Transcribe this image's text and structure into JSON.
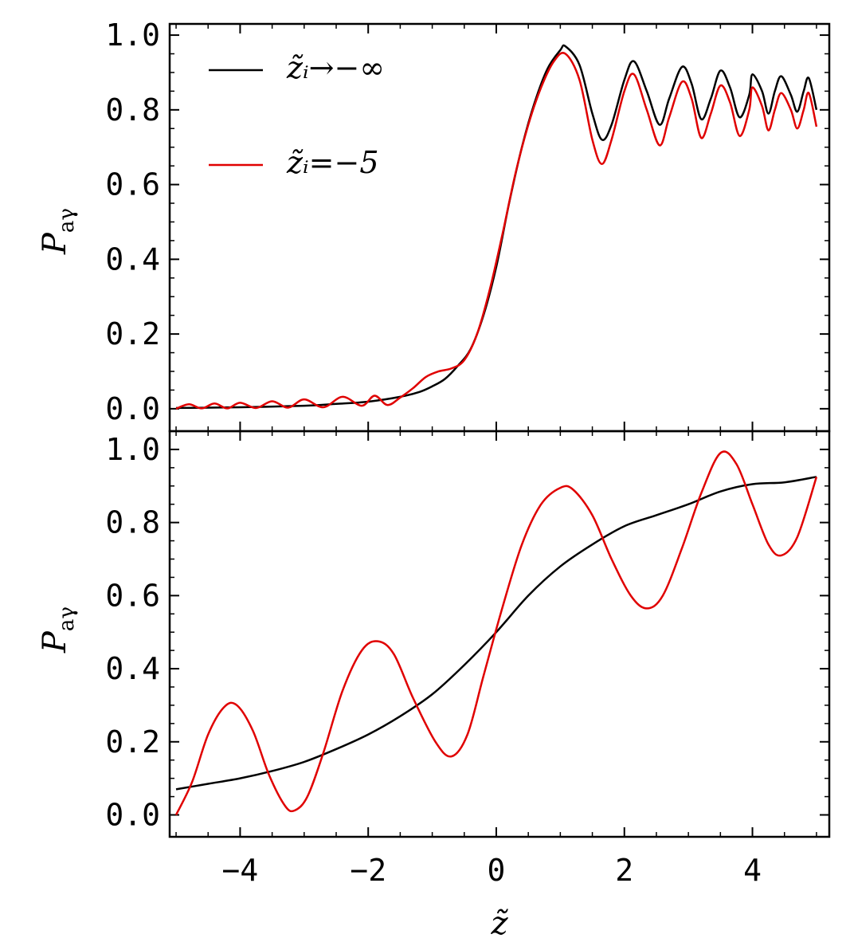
{
  "chart_data": [
    {
      "type": "line",
      "panel": "top",
      "ylabel": "P_aγ",
      "xlim": [
        -5.1,
        5.2
      ],
      "ylim": [
        -0.06,
        1.03
      ],
      "x_ticks": [
        -4,
        -2,
        0,
        2,
        4
      ],
      "y_ticks": [
        0.0,
        0.2,
        0.4,
        0.6,
        0.8,
        1.0
      ],
      "y_tick_labels": [
        "0.0",
        "0.2",
        "0.4",
        "0.6",
        "0.8",
        "1.0"
      ],
      "legend_position": "top-left",
      "grid": false,
      "series": [
        {
          "name": "z̃ᵢ→−∞",
          "color": "#000000",
          "points": [
            [
              -5,
              0.002
            ],
            [
              -4,
              0.004
            ],
            [
              -3,
              0.008
            ],
            [
              -2.5,
              0.013
            ],
            [
              -2,
              0.019
            ],
            [
              -1.5,
              0.032
            ],
            [
              -1.2,
              0.045
            ],
            [
              -1,
              0.06
            ],
            [
              -0.8,
              0.08
            ],
            [
              -0.6,
              0.115
            ],
            [
              -0.4,
              0.16
            ],
            [
              -0.2,
              0.25
            ],
            [
              0,
              0.38
            ],
            [
              0.2,
              0.55
            ],
            [
              0.4,
              0.7
            ],
            [
              0.6,
              0.82
            ],
            [
              0.8,
              0.91
            ],
            [
              1.0,
              0.96
            ],
            [
              1.08,
              0.97
            ],
            [
              1.3,
              0.92
            ],
            [
              1.5,
              0.79
            ],
            [
              1.65,
              0.72
            ],
            [
              1.8,
              0.76
            ],
            [
              2.0,
              0.88
            ],
            [
              2.15,
              0.93
            ],
            [
              2.35,
              0.85
            ],
            [
              2.55,
              0.76
            ],
            [
              2.7,
              0.83
            ],
            [
              2.9,
              0.915
            ],
            [
              3.05,
              0.87
            ],
            [
              3.2,
              0.775
            ],
            [
              3.35,
              0.83
            ],
            [
              3.5,
              0.905
            ],
            [
              3.65,
              0.86
            ],
            [
              3.8,
              0.78
            ],
            [
              3.95,
              0.84
            ],
            [
              4.0,
              0.895
            ],
            [
              4.15,
              0.85
            ],
            [
              4.25,
              0.79
            ],
            [
              4.35,
              0.85
            ],
            [
              4.45,
              0.89
            ],
            [
              4.6,
              0.84
            ],
            [
              4.7,
              0.795
            ],
            [
              4.8,
              0.85
            ],
            [
              4.88,
              0.885
            ],
            [
              5.0,
              0.8
            ]
          ]
        },
        {
          "name": "z̃ᵢ=−5",
          "color": "#e00000",
          "points": [
            [
              -5,
              0.0
            ],
            [
              -4.8,
              0.012
            ],
            [
              -4.6,
              0.001
            ],
            [
              -4.4,
              0.014
            ],
            [
              -4.2,
              0.001
            ],
            [
              -4.0,
              0.016
            ],
            [
              -3.75,
              0.002
            ],
            [
              -3.5,
              0.02
            ],
            [
              -3.25,
              0.003
            ],
            [
              -3.0,
              0.025
            ],
            [
              -2.7,
              0.004
            ],
            [
              -2.4,
              0.032
            ],
            [
              -2.1,
              0.008
            ],
            [
              -1.9,
              0.035
            ],
            [
              -1.7,
              0.01
            ],
            [
              -1.5,
              0.03
            ],
            [
              -1.3,
              0.055
            ],
            [
              -1.1,
              0.085
            ],
            [
              -0.9,
              0.1
            ],
            [
              -0.7,
              0.108
            ],
            [
              -0.5,
              0.13
            ],
            [
              -0.3,
              0.2
            ],
            [
              -0.1,
              0.32
            ],
            [
              0.1,
              0.47
            ],
            [
              0.3,
              0.63
            ],
            [
              0.5,
              0.76
            ],
            [
              0.7,
              0.86
            ],
            [
              0.9,
              0.93
            ],
            [
              1.08,
              0.95
            ],
            [
              1.3,
              0.88
            ],
            [
              1.5,
              0.72
            ],
            [
              1.65,
              0.655
            ],
            [
              1.8,
              0.72
            ],
            [
              2.0,
              0.85
            ],
            [
              2.15,
              0.895
            ],
            [
              2.35,
              0.8
            ],
            [
              2.55,
              0.705
            ],
            [
              2.7,
              0.78
            ],
            [
              2.9,
              0.875
            ],
            [
              3.05,
              0.83
            ],
            [
              3.2,
              0.725
            ],
            [
              3.35,
              0.79
            ],
            [
              3.5,
              0.865
            ],
            [
              3.65,
              0.82
            ],
            [
              3.8,
              0.73
            ],
            [
              3.95,
              0.8
            ],
            [
              4.0,
              0.86
            ],
            [
              4.15,
              0.81
            ],
            [
              4.25,
              0.745
            ],
            [
              4.35,
              0.8
            ],
            [
              4.45,
              0.845
            ],
            [
              4.6,
              0.8
            ],
            [
              4.7,
              0.75
            ],
            [
              4.8,
              0.8
            ],
            [
              4.88,
              0.845
            ],
            [
              5.0,
              0.755
            ]
          ]
        }
      ]
    },
    {
      "type": "line",
      "panel": "bottom",
      "xlabel": "z̃",
      "ylabel": "P_aγ",
      "xlim": [
        -5.1,
        5.2
      ],
      "ylim": [
        -0.06,
        1.05
      ],
      "x_ticks": [
        -4,
        -2,
        0,
        2,
        4
      ],
      "x_tick_labels": [
        "−4",
        "−2",
        "0",
        "2",
        "4"
      ],
      "y_ticks": [
        0.0,
        0.2,
        0.4,
        0.6,
        0.8,
        1.0
      ],
      "y_tick_labels": [
        "0.0",
        "0.2",
        "0.4",
        "0.6",
        "0.8",
        "1.0"
      ],
      "grid": false,
      "series": [
        {
          "color": "#000000",
          "points": [
            [
              -5,
              0.07
            ],
            [
              -4.5,
              0.085
            ],
            [
              -4,
              0.1
            ],
            [
              -3.5,
              0.12
            ],
            [
              -3,
              0.145
            ],
            [
              -2.5,
              0.18
            ],
            [
              -2,
              0.22
            ],
            [
              -1.5,
              0.27
            ],
            [
              -1,
              0.33
            ],
            [
              -0.5,
              0.41
            ],
            [
              0,
              0.5
            ],
            [
              0.5,
              0.6
            ],
            [
              1.0,
              0.68
            ],
            [
              1.5,
              0.74
            ],
            [
              2,
              0.79
            ],
            [
              2.5,
              0.82
            ],
            [
              3,
              0.85
            ],
            [
              3.5,
              0.885
            ],
            [
              4,
              0.905
            ],
            [
              4.5,
              0.91
            ],
            [
              5,
              0.925
            ]
          ]
        },
        {
          "color": "#e00000",
          "points": [
            [
              -5,
              0.0
            ],
            [
              -4.75,
              0.09
            ],
            [
              -4.5,
              0.22
            ],
            [
              -4.25,
              0.295
            ],
            [
              -4.05,
              0.3
            ],
            [
              -3.8,
              0.23
            ],
            [
              -3.55,
              0.11
            ],
            [
              -3.3,
              0.025
            ],
            [
              -3.15,
              0.012
            ],
            [
              -2.95,
              0.05
            ],
            [
              -2.7,
              0.17
            ],
            [
              -2.4,
              0.34
            ],
            [
              -2.1,
              0.45
            ],
            [
              -1.85,
              0.475
            ],
            [
              -1.6,
              0.44
            ],
            [
              -1.3,
              0.32
            ],
            [
              -0.95,
              0.2
            ],
            [
              -0.7,
              0.16
            ],
            [
              -0.45,
              0.22
            ],
            [
              -0.2,
              0.38
            ],
            [
              0.1,
              0.57
            ],
            [
              0.4,
              0.74
            ],
            [
              0.7,
              0.85
            ],
            [
              1.0,
              0.895
            ],
            [
              1.2,
              0.89
            ],
            [
              1.5,
              0.82
            ],
            [
              1.8,
              0.7
            ],
            [
              2.1,
              0.6
            ],
            [
              2.35,
              0.565
            ],
            [
              2.6,
              0.6
            ],
            [
              2.9,
              0.73
            ],
            [
              3.2,
              0.88
            ],
            [
              3.5,
              0.99
            ],
            [
              3.75,
              0.96
            ],
            [
              4.0,
              0.85
            ],
            [
              4.25,
              0.74
            ],
            [
              4.45,
              0.71
            ],
            [
              4.7,
              0.76
            ],
            [
              5.0,
              0.925
            ]
          ]
        }
      ]
    }
  ]
}
